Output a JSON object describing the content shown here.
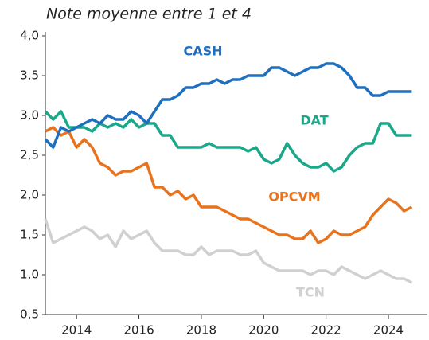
{
  "chart_data": {
    "type": "line",
    "title": "Note moyenne entre 1 et 4",
    "x": [
      2013,
      2013.25,
      2013.5,
      2013.75,
      2014,
      2014.25,
      2014.5,
      2014.75,
      2015,
      2015.25,
      2015.5,
      2015.75,
      2016,
      2016.25,
      2016.5,
      2016.75,
      2017,
      2017.25,
      2017.5,
      2017.75,
      2018,
      2018.25,
      2018.5,
      2018.75,
      2019,
      2019.25,
      2019.5,
      2019.75,
      2020,
      2020.25,
      2020.5,
      2020.75,
      2021,
      2021.25,
      2021.5,
      2021.75,
      2022,
      2022.25,
      2022.5,
      2022.75,
      2023,
      2023.25,
      2023.5,
      2023.75,
      2024,
      2024.25,
      2024.5,
      2024.75
    ],
    "series": [
      {
        "name": "CASH",
        "color": "#1f6fbf",
        "values": [
          2.7,
          2.6,
          2.85,
          2.8,
          2.85,
          2.9,
          2.95,
          2.9,
          3.0,
          2.95,
          2.95,
          3.05,
          3.0,
          2.9,
          3.05,
          3.2,
          3.2,
          3.25,
          3.35,
          3.35,
          3.4,
          3.4,
          3.45,
          3.4,
          3.45,
          3.45,
          3.5,
          3.5,
          3.5,
          3.6,
          3.6,
          3.55,
          3.5,
          3.55,
          3.6,
          3.6,
          3.65,
          3.65,
          3.6,
          3.5,
          3.35,
          3.35,
          3.25,
          3.25,
          3.3,
          3.3,
          3.3,
          3.3
        ]
      },
      {
        "name": "DAT",
        "color": "#1aa88a",
        "values": [
          3.05,
          2.95,
          3.05,
          2.85,
          2.85,
          2.85,
          2.8,
          2.9,
          2.85,
          2.9,
          2.85,
          2.95,
          2.85,
          2.9,
          2.9,
          2.75,
          2.75,
          2.6,
          2.6,
          2.6,
          2.6,
          2.65,
          2.6,
          2.6,
          2.6,
          2.6,
          2.55,
          2.6,
          2.45,
          2.4,
          2.45,
          2.65,
          2.5,
          2.4,
          2.35,
          2.35,
          2.4,
          2.3,
          2.35,
          2.5,
          2.6,
          2.65,
          2.65,
          2.9,
          2.9,
          2.75,
          2.75,
          2.75
        ]
      },
      {
        "name": "OPCVM",
        "color": "#e8731c",
        "values": [
          2.8,
          2.85,
          2.75,
          2.8,
          2.6,
          2.7,
          2.6,
          2.4,
          2.35,
          2.25,
          2.3,
          2.3,
          2.35,
          2.4,
          2.1,
          2.1,
          2.0,
          2.05,
          1.95,
          2.0,
          1.85,
          1.85,
          1.85,
          1.8,
          1.75,
          1.7,
          1.7,
          1.65,
          1.6,
          1.55,
          1.5,
          1.5,
          1.45,
          1.45,
          1.55,
          1.4,
          1.45,
          1.55,
          1.5,
          1.5,
          1.55,
          1.6,
          1.75,
          1.85,
          1.95,
          1.9,
          1.8,
          1.85
        ]
      },
      {
        "name": "TCN",
        "color": "#d0d0d0",
        "values": [
          1.7,
          1.4,
          1.45,
          1.5,
          1.55,
          1.6,
          1.55,
          1.45,
          1.5,
          1.35,
          1.55,
          1.45,
          1.5,
          1.55,
          1.4,
          1.3,
          1.3,
          1.3,
          1.25,
          1.25,
          1.35,
          1.25,
          1.3,
          1.3,
          1.3,
          1.25,
          1.25,
          1.3,
          1.15,
          1.1,
          1.05,
          1.05,
          1.05,
          1.05,
          1.0,
          1.05,
          1.05,
          1.0,
          1.1,
          1.05,
          1.0,
          0.95,
          1.0,
          1.05,
          1.0,
          0.95,
          0.95,
          0.9
        ]
      }
    ],
    "xlim": [
      2013,
      2025.25
    ],
    "xticks": [
      2014,
      2016,
      2018,
      2020,
      2022,
      2024
    ],
    "ylim": [
      0.5,
      4.0
    ],
    "yticks": [
      {
        "value": 0.5,
        "label": "0,5"
      },
      {
        "value": 1.0,
        "label": "1,0"
      },
      {
        "value": 1.5,
        "label": "1,5"
      },
      {
        "value": 2.0,
        "label": "2,0"
      },
      {
        "value": 2.5,
        "label": "2,5"
      },
      {
        "value": 3.0,
        "label": "3,0"
      },
      {
        "value": 3.5,
        "label": "3,5"
      },
      {
        "value": 4.0,
        "label": "4,0"
      }
    ]
  }
}
